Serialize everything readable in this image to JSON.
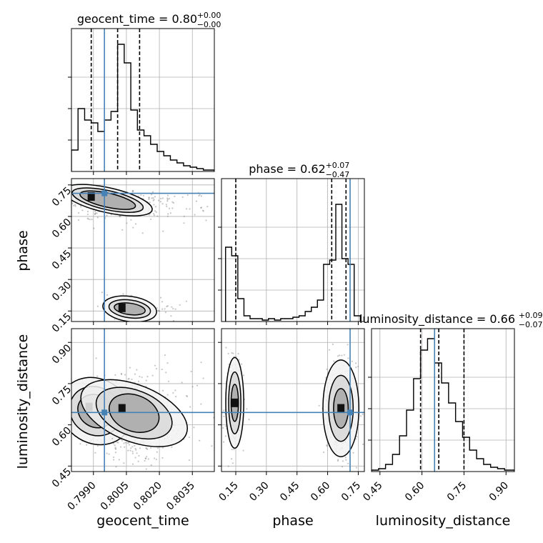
{
  "chart_data": {
    "type": "corner",
    "parameters": [
      "geocent_time",
      "phase",
      "luminosity_distance"
    ],
    "truth": {
      "geocent_time": 0.7995,
      "phase": 0.71,
      "luminosity_distance": 0.645
    },
    "colors": {
      "truth": "#4682b4",
      "hist": "#000000",
      "points": "#808080",
      "grid": "#b0b0b0"
    },
    "grid": true,
    "panels": [
      {
        "row": 0,
        "col": 0,
        "kind": "hist",
        "param": "geocent_time",
        "title_main": "geocent_time = 0.80",
        "title_plus": "+0.00",
        "title_minus": "−0.00",
        "xlim": [
          0.798,
          0.8045
        ],
        "ylim": [
          0,
          1.0
        ],
        "xticks": [
          0.799,
          0.8005,
          0.802,
          0.8035
        ],
        "yticks": [
          0.22,
          0.44,
          0.66
        ],
        "bin_edges": [
          0.798,
          0.7983,
          0.7986,
          0.7989,
          0.7992,
          0.7995,
          0.7998,
          0.8001,
          0.8004,
          0.8007,
          0.801,
          0.8013,
          0.8016,
          0.8019,
          0.8022,
          0.8025,
          0.8028,
          0.8031,
          0.8034,
          0.8037,
          0.804,
          0.8045
        ],
        "counts": [
          0.15,
          0.44,
          0.36,
          0.34,
          0.28,
          0.36,
          0.42,
          0.89,
          0.76,
          0.43,
          0.29,
          0.25,
          0.19,
          0.14,
          0.11,
          0.08,
          0.06,
          0.04,
          0.03,
          0.02,
          0.01
        ],
        "quantiles": [
          0.7989,
          0.8001,
          0.8011
        ]
      },
      {
        "row": 1,
        "col": 1,
        "kind": "hist",
        "param": "phase",
        "title_main": "phase = 0.62",
        "title_plus": "+0.07",
        "title_minus": "−0.47",
        "xlim": [
          0.08,
          0.78
        ],
        "ylim": [
          0,
          1.0
        ],
        "xticks": [
          0.15,
          0.3,
          0.45,
          0.6,
          0.75
        ],
        "yticks": [
          0.22,
          0.44,
          0.66
        ],
        "bin_edges": [
          0.1,
          0.13,
          0.16,
          0.19,
          0.22,
          0.25,
          0.28,
          0.31,
          0.34,
          0.37,
          0.4,
          0.43,
          0.46,
          0.49,
          0.52,
          0.55,
          0.58,
          0.61,
          0.64,
          0.67,
          0.7,
          0.73,
          0.76
        ],
        "counts": [
          0.52,
          0.46,
          0.16,
          0.04,
          0.02,
          0.02,
          0.01,
          0.02,
          0.01,
          0.02,
          0.02,
          0.03,
          0.04,
          0.07,
          0.1,
          0.15,
          0.4,
          0.43,
          0.82,
          0.44,
          0.4,
          0.04
        ],
        "quantiles": [
          0.15,
          0.62,
          0.69
        ]
      },
      {
        "row": 2,
        "col": 2,
        "kind": "hist",
        "param": "luminosity_distance",
        "title_main": "luminosity_distance = 0.66",
        "title_plus": "+0.09",
        "title_minus": "−0.07",
        "xlim": [
          0.42,
          0.93
        ],
        "ylim": [
          0,
          1.0
        ],
        "xticks": [
          0.45,
          0.6,
          0.75,
          0.9
        ],
        "yticks": [
          0.22,
          0.44,
          0.66
        ],
        "bin_edges": [
          0.42,
          0.445,
          0.47,
          0.495,
          0.52,
          0.545,
          0.57,
          0.595,
          0.62,
          0.645,
          0.67,
          0.695,
          0.72,
          0.745,
          0.77,
          0.795,
          0.82,
          0.845,
          0.87,
          0.895,
          0.93
        ],
        "counts": [
          0.01,
          0.02,
          0.05,
          0.12,
          0.25,
          0.43,
          0.65,
          0.85,
          0.93,
          0.76,
          0.62,
          0.48,
          0.35,
          0.24,
          0.15,
          0.09,
          0.05,
          0.03,
          0.02,
          0.01
        ],
        "quantiles": [
          0.595,
          0.66,
          0.75
        ]
      },
      {
        "row": 1,
        "col": 0,
        "kind": "density2d",
        "xparam": "geocent_time",
        "yparam": "phase",
        "xlim": [
          0.798,
          0.8045
        ],
        "ylim": [
          0.1,
          0.78
        ],
        "xticks": [
          0.799,
          0.8005,
          0.802,
          0.8035
        ],
        "yticks": [
          0.15,
          0.3,
          0.45,
          0.6,
          0.75
        ],
        "clusters": [
          {
            "cx": 0.7989,
            "cy": 0.695,
            "sx": 0.0006,
            "sy": 0.022,
            "n": 420,
            "tail_dx": 0.003,
            "tail_dy": -0.07
          },
          {
            "cx": 0.8003,
            "cy": 0.165,
            "sx": 0.0004,
            "sy": 0.028,
            "n": 200,
            "tail_dx": 0.0014,
            "tail_dy": -0.02
          }
        ]
      },
      {
        "row": 2,
        "col": 0,
        "kind": "density2d",
        "xparam": "geocent_time",
        "yparam": "luminosity_distance",
        "xlim": [
          0.798,
          0.8045
        ],
        "ylim": [
          0.43,
          0.95
        ],
        "xticks": [
          0.799,
          0.8005,
          0.802,
          0.8035
        ],
        "yticks": [
          0.45,
          0.6,
          0.75,
          0.9
        ],
        "clusters": [
          {
            "cx": 0.7988,
            "cy": 0.665,
            "sx": 0.0006,
            "sy": 0.055,
            "n": 380,
            "tail_dx": 0.0012,
            "tail_dy": -0.06
          },
          {
            "cx": 0.8003,
            "cy": 0.66,
            "sx": 0.0004,
            "sy": 0.085,
            "n": 360,
            "tail_dx": 0.0022,
            "tail_dy": -0.07
          }
        ]
      },
      {
        "row": 2,
        "col": 1,
        "kind": "density2d",
        "xparam": "phase",
        "yparam": "luminosity_distance",
        "xlim": [
          0.08,
          0.78
        ],
        "ylim": [
          0.43,
          0.95
        ],
        "xticks": [
          0.15,
          0.3,
          0.45,
          0.6,
          0.75
        ],
        "yticks": [
          0.45,
          0.6,
          0.75,
          0.9
        ],
        "clusters": [
          {
            "cx": 0.145,
            "cy": 0.68,
            "sx": 0.02,
            "sy": 0.075,
            "n": 340,
            "tail_dx": 0.0,
            "tail_dy": 0.0
          },
          {
            "cx": 0.665,
            "cy": 0.66,
            "sx": 0.04,
            "sy": 0.08,
            "n": 420,
            "tail_dx": 0.0,
            "tail_dy": 0.0
          }
        ]
      }
    ],
    "tick_labels": {
      "geocent_time": [
        "0.7990",
        "0.8005",
        "0.8020",
        "0.8035"
      ],
      "phase": [
        "0.15",
        "0.30",
        "0.45",
        "0.60",
        "0.75"
      ],
      "luminosity_distance": [
        "0.45",
        "0.60",
        "0.75",
        "0.90"
      ]
    },
    "axis_labels": {
      "x": [
        "geocent_time",
        "phase",
        "luminosity_distance"
      ],
      "y": [
        "phase",
        "luminosity_distance"
      ]
    }
  }
}
